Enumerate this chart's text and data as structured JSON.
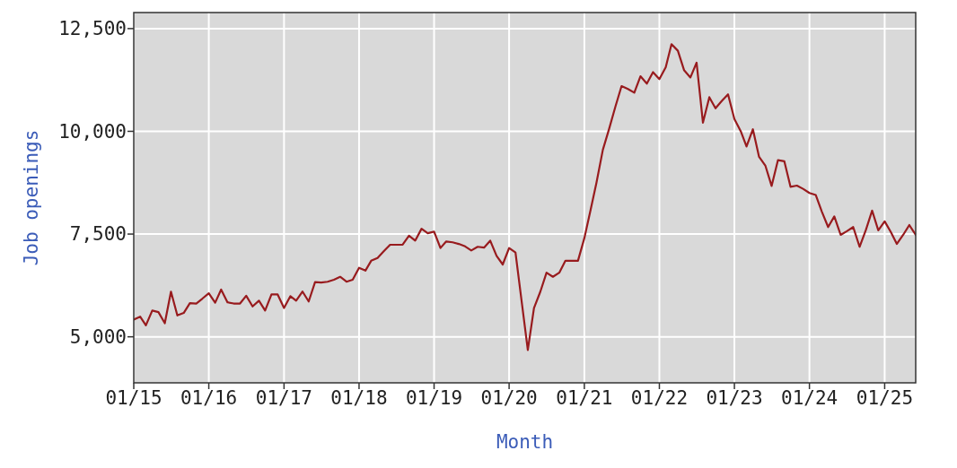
{
  "chart_data": {
    "type": "line",
    "xlabel": "Month",
    "ylabel": "Job openings",
    "x": [
      "2015-01",
      "2015-02",
      "2015-03",
      "2015-04",
      "2015-05",
      "2015-06",
      "2015-07",
      "2015-08",
      "2015-09",
      "2015-10",
      "2015-11",
      "2015-12",
      "2016-01",
      "2016-02",
      "2016-03",
      "2016-04",
      "2016-05",
      "2016-06",
      "2016-07",
      "2016-08",
      "2016-09",
      "2016-10",
      "2016-11",
      "2016-12",
      "2017-01",
      "2017-02",
      "2017-03",
      "2017-04",
      "2017-05",
      "2017-06",
      "2017-07",
      "2017-08",
      "2017-09",
      "2017-10",
      "2017-11",
      "2017-12",
      "2018-01",
      "2018-02",
      "2018-03",
      "2018-04",
      "2018-05",
      "2018-06",
      "2018-07",
      "2018-08",
      "2018-09",
      "2018-10",
      "2018-11",
      "2018-12",
      "2019-01",
      "2019-02",
      "2019-03",
      "2019-04",
      "2019-05",
      "2019-06",
      "2019-07",
      "2019-08",
      "2019-09",
      "2019-10",
      "2019-11",
      "2019-12",
      "2020-01",
      "2020-02",
      "2020-03",
      "2020-04",
      "2020-05",
      "2020-06",
      "2020-07",
      "2020-08",
      "2020-09",
      "2020-10",
      "2020-11",
      "2020-12",
      "2021-01",
      "2021-02",
      "2021-03",
      "2021-04",
      "2021-05",
      "2021-06",
      "2021-07",
      "2021-08",
      "2021-09",
      "2021-10",
      "2021-11",
      "2021-12",
      "2022-01",
      "2022-02",
      "2022-03",
      "2022-04",
      "2022-05",
      "2022-06",
      "2022-07",
      "2022-08",
      "2022-09",
      "2022-10",
      "2022-11",
      "2022-12",
      "2023-01",
      "2023-02",
      "2023-03",
      "2023-04",
      "2023-05",
      "2023-06",
      "2023-07",
      "2023-08",
      "2023-09",
      "2023-10",
      "2023-11",
      "2023-12",
      "2024-01",
      "2024-02",
      "2024-03",
      "2024-04",
      "2024-05",
      "2024-06",
      "2024-07",
      "2024-08",
      "2024-09",
      "2024-10",
      "2024-11",
      "2024-12",
      "2025-01",
      "2025-02",
      "2025-03",
      "2025-04",
      "2025-05",
      "2025-06"
    ],
    "series": [
      {
        "color": "#981b1e",
        "values": [
          5420,
          5490,
          5280,
          5640,
          5600,
          5330,
          6100,
          5520,
          5580,
          5820,
          5810,
          5930,
          6060,
          5830,
          6150,
          5840,
          5810,
          5810,
          6000,
          5740,
          5880,
          5640,
          6030,
          6030,
          5700,
          5990,
          5880,
          6100,
          5860,
          6330,
          6320,
          6340,
          6390,
          6460,
          6340,
          6390,
          6680,
          6610,
          6850,
          6920,
          7080,
          7240,
          7240,
          7240,
          7460,
          7340,
          7630,
          7520,
          7560,
          7160,
          7320,
          7300,
          7260,
          7200,
          7100,
          7190,
          7170,
          7340,
          6970,
          6760,
          7160,
          7050,
          5900,
          4680,
          5700,
          6100,
          6560,
          6460,
          6560,
          6850,
          6850,
          6850,
          7400,
          8100,
          8750,
          9550,
          10050,
          10600,
          11100,
          11030,
          10940,
          11340,
          11160,
          11440,
          11270,
          11560,
          12120,
          11960,
          11490,
          11310,
          11670,
          10210,
          10830,
          10560,
          10740,
          10900,
          10300,
          10000,
          9630,
          10050,
          9380,
          9160,
          8670,
          9300,
          9270,
          8650,
          8680,
          8600,
          8500,
          8450,
          8050,
          7670,
          7930,
          7480,
          7570,
          7670,
          7190,
          7590,
          8070,
          7590,
          7810,
          7540,
          7260,
          7480,
          7720,
          7480
        ]
      }
    ],
    "xlim": [
      "2015-01",
      "2025-06"
    ],
    "xticks": [
      {
        "value": "2015-01",
        "label": "01/15"
      },
      {
        "value": "2016-01",
        "label": "01/16"
      },
      {
        "value": "2017-01",
        "label": "01/17"
      },
      {
        "value": "2018-01",
        "label": "01/18"
      },
      {
        "value": "2019-01",
        "label": "01/19"
      },
      {
        "value": "2020-01",
        "label": "01/20"
      },
      {
        "value": "2021-01",
        "label": "01/21"
      },
      {
        "value": "2022-01",
        "label": "01/22"
      },
      {
        "value": "2023-01",
        "label": "01/23"
      },
      {
        "value": "2024-01",
        "label": "01/24"
      },
      {
        "value": "2025-01",
        "label": "01/25"
      }
    ],
    "ylim": [
      3880,
      12890
    ],
    "yticks": [
      {
        "value": 5000,
        "label": "5,000"
      },
      {
        "value": 7500,
        "label": "7,500"
      },
      {
        "value": 10000,
        "label": "10,000"
      },
      {
        "value": 12500,
        "label": "12,500"
      }
    ],
    "grid": true
  }
}
